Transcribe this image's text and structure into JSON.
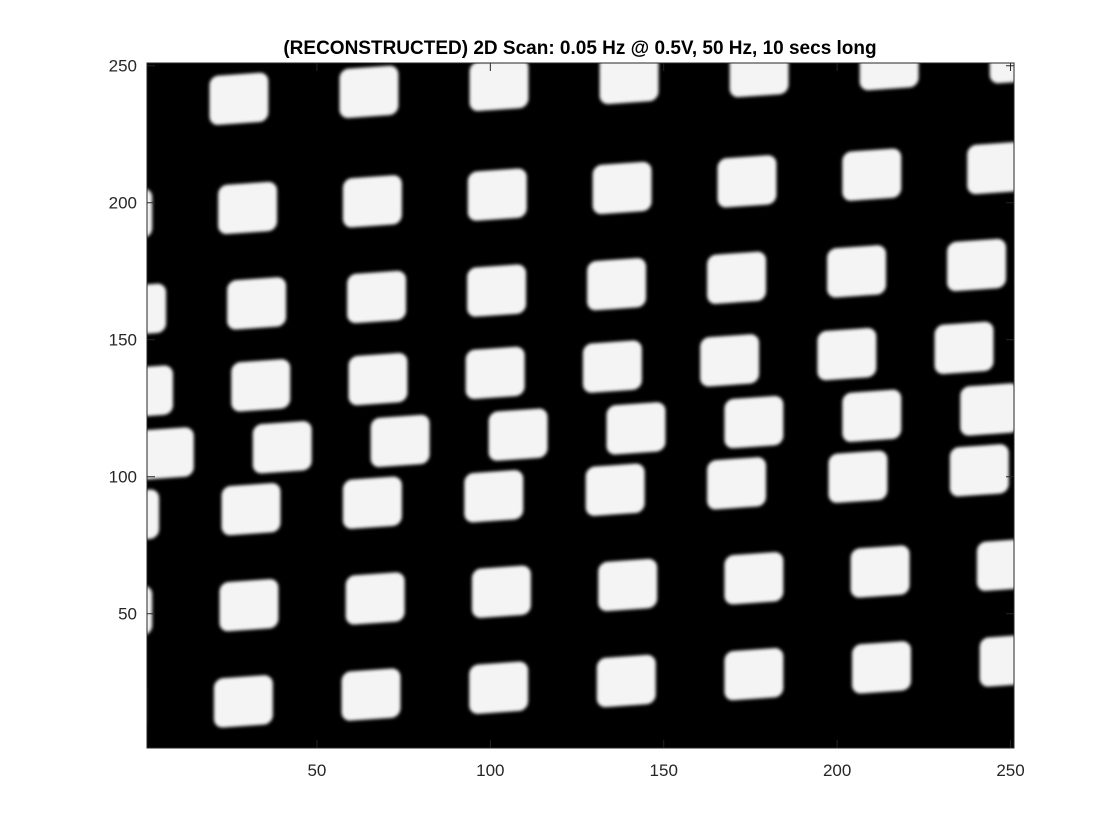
{
  "chart_data": {
    "type": "heatmap",
    "title": "(RECONSTRUCTED) 2D Scan: 0.05 Hz @ 0.5V, 50 Hz, 10 secs long",
    "xlabel": "",
    "ylabel": "",
    "xlim": [
      1,
      251
    ],
    "ylim": [
      1,
      251
    ],
    "y_direction": "normal",
    "colormap": "gray",
    "grid": false,
    "x_ticks": [
      50,
      100,
      150,
      200,
      250
    ],
    "y_ticks": [
      50,
      100,
      150,
      200,
      250
    ],
    "pattern": {
      "description_kind": "grid-of-bright-squares",
      "rows": [
        {
          "y_center": 20,
          "x_start": -8,
          "x_step": 36.8,
          "slope": 0.27
        },
        {
          "y_center": 55,
          "x_start": -6,
          "x_step": 36.4,
          "slope": 0.27
        },
        {
          "y_center": 90,
          "x_start": -4,
          "x_step": 35.0,
          "slope": 0.27
        },
        {
          "y_center": 112,
          "x_start": 6,
          "x_step": 34.0,
          "slope": 0.27
        },
        {
          "y_center": 135,
          "x_start": 0,
          "x_step": 33.8,
          "slope": 0.27
        },
        {
          "y_center": 165,
          "x_start": -2,
          "x_step": 34.6,
          "slope": 0.27
        },
        {
          "y_center": 200,
          "x_start": -6,
          "x_step": 36.0,
          "slope": 0.27
        },
        {
          "y_center": 240,
          "x_start": -10,
          "x_step": 37.5,
          "slope": 0.27
        }
      ],
      "cell_width": 17,
      "cell_height": 18
    }
  }
}
